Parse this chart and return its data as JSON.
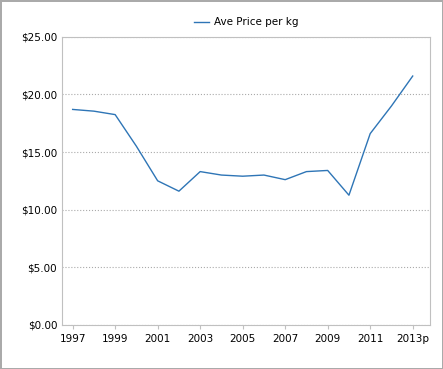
{
  "years": [
    1997,
    1998,
    1999,
    2000,
    2001,
    2002,
    2003,
    2004,
    2005,
    2006,
    2007,
    2008,
    2009,
    2010,
    2011,
    2012,
    2013
  ],
  "prices": [
    18.7,
    18.55,
    18.25,
    15.5,
    12.5,
    11.6,
    13.3,
    13.0,
    12.9,
    13.0,
    12.6,
    13.3,
    13.4,
    11.25,
    16.6,
    19.0,
    21.6
  ],
  "x_tick_labels": [
    "1997",
    "1999",
    "2001",
    "2003",
    "2005",
    "2007",
    "2009",
    "2011",
    "2013p"
  ],
  "x_tick_positions": [
    1997,
    1999,
    2001,
    2003,
    2005,
    2007,
    2009,
    2011,
    2013
  ],
  "ylim": [
    0,
    25
  ],
  "yticks": [
    0,
    5,
    10,
    15,
    20,
    25
  ],
  "ytick_labels": [
    "$0.00",
    "$5.00",
    "$10.00",
    "$15.00",
    "$20.00",
    "$25.00"
  ],
  "line_color": "#2E75B6",
  "legend_label": "Ave Price per kg",
  "grid_color": "#AAAAAA",
  "background_color": "#FFFFFF",
  "plot_area_color": "#FFFFFF",
  "border_color": "#AAAAAA",
  "spine_color": "#C0C0C0"
}
